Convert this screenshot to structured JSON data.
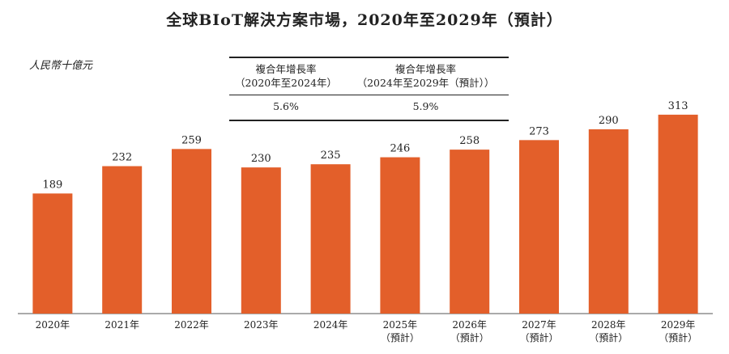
{
  "title": "全球BIoT解決方案市場，2020年至2029年（預計）",
  "unit_label": "人民幣十億元",
  "cagr_table": {
    "columns": [
      {
        "header_line1": "複合年增長率",
        "header_line2": "（2020年至2024年）",
        "value": "5.6%"
      },
      {
        "header_line1": "複合年增長率",
        "header_line2": "（2024年至2029年（預計））",
        "value": "5.9%"
      }
    ]
  },
  "colors": {
    "bar": "#E35F2A",
    "axis": "#555555"
  },
  "chart_data": {
    "type": "bar",
    "title": "全球BIoT解決方案市場，2020年至2029年（預計）",
    "ylabel": "人民幣十億元",
    "categories": [
      "2020年",
      "2021年",
      "2022年",
      "2023年",
      "2024年",
      "2025年",
      "2026年",
      "2027年",
      "2028年",
      "2029年"
    ],
    "category_notes": [
      "",
      "",
      "",
      "",
      "",
      "（預計）",
      "（預計）",
      "（預計）",
      "（預計）",
      "（預計）"
    ],
    "values": [
      189,
      232,
      259,
      230,
      235,
      246,
      258,
      273,
      290,
      313
    ],
    "ylim": [
      0,
      330
    ],
    "grid": false,
    "legend": "none"
  }
}
